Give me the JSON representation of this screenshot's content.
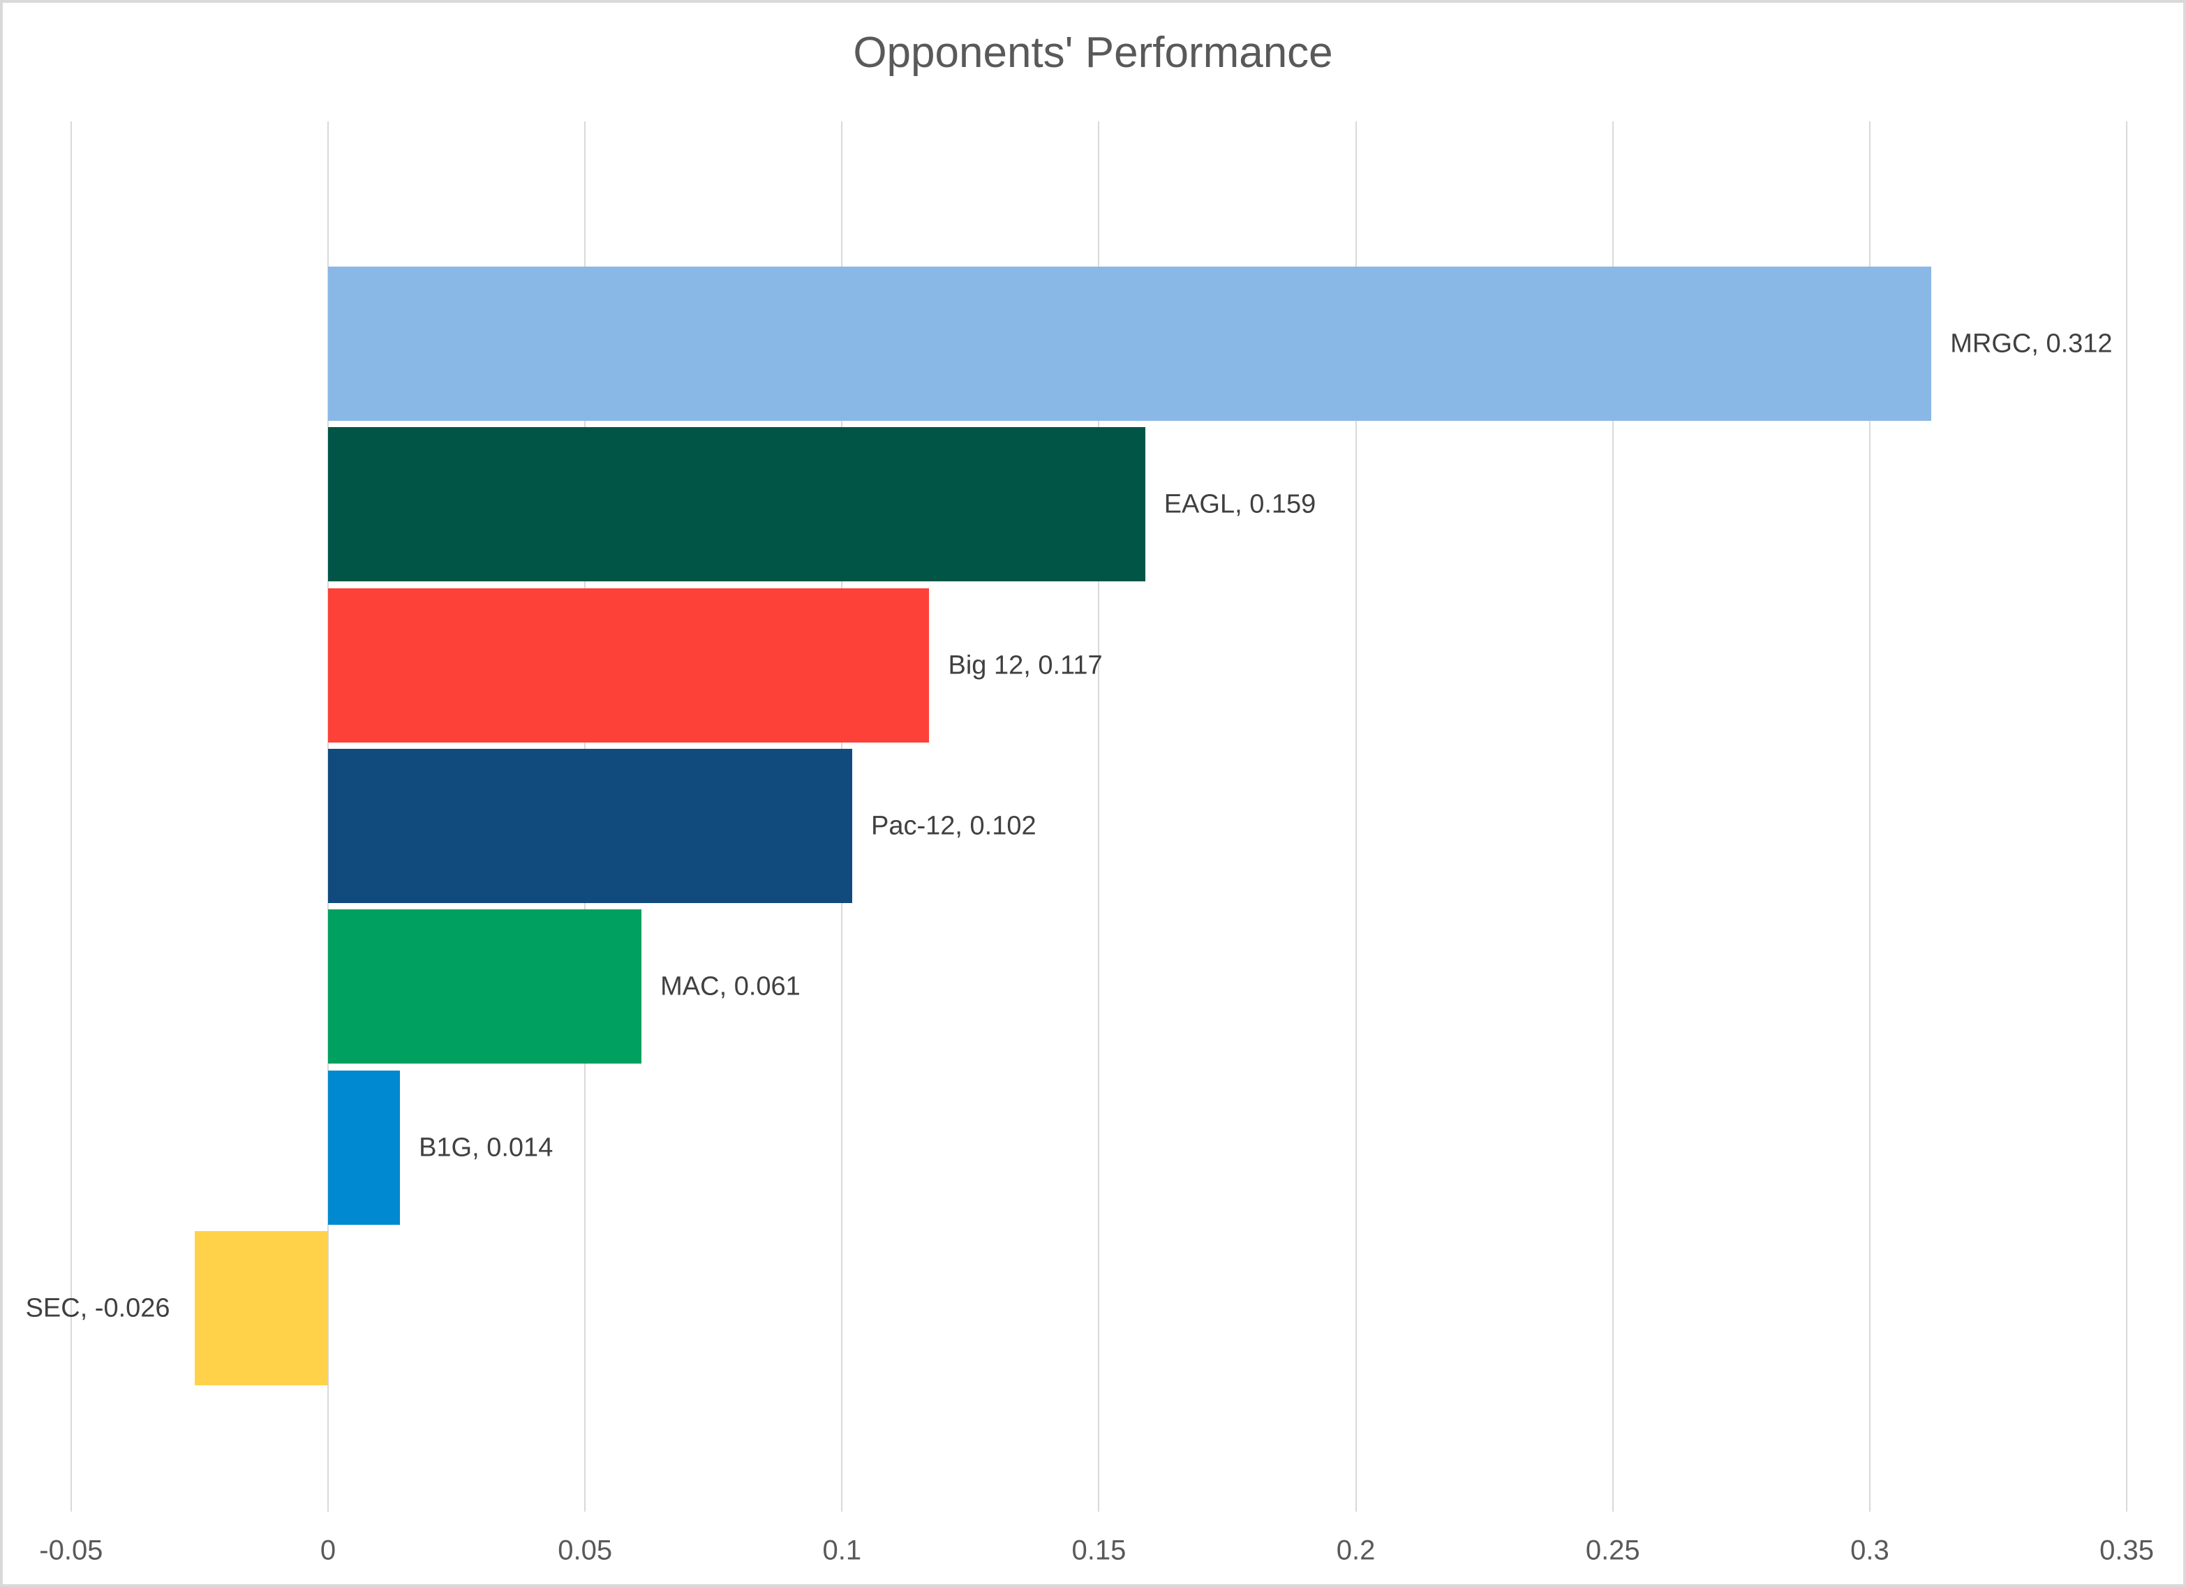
{
  "title": "Opponents' Performance",
  "chart_data": {
    "type": "bar",
    "orientation": "horizontal",
    "title": "Opponents' Performance",
    "xlabel": "",
    "ylabel": "",
    "categories": [
      "MRGC",
      "EAGL",
      "Big 12",
      "Pac-12",
      "MAC",
      "B1G",
      "SEC"
    ],
    "values": [
      0.312,
      0.159,
      0.117,
      0.102,
      0.061,
      0.014,
      -0.026
    ],
    "data_labels": [
      "MRGC, 0.312",
      "EAGL, 0.159",
      "Big 12, 0.117",
      "Pac-12, 0.102",
      "MAC, 0.061",
      "B1G, 0.014",
      "SEC, -0.026"
    ],
    "bar_colors": [
      "#8AB8E6",
      "#005546",
      "#FD4138",
      "#114A7D",
      "#00A160",
      "#0089D0",
      "#FFD24A"
    ],
    "xlim": [
      -0.05,
      0.35
    ],
    "x_ticks": [
      -0.05,
      0,
      0.05,
      0.1,
      0.15,
      0.2,
      0.25,
      0.3,
      0.35
    ],
    "x_tick_labels": [
      "-0.05",
      "0",
      "0.05",
      "0.1",
      "0.15",
      "0.2",
      "0.25",
      "0.3",
      "0.35"
    ],
    "grid": "vertical-gridlines-on",
    "legend": "none"
  },
  "colors": {
    "background": "#FFFFFF",
    "border": "#D9D9D9",
    "gridline": "#D9D9D9",
    "title_text": "#595959",
    "axis_text": "#595959",
    "data_label_text": "#404040"
  }
}
